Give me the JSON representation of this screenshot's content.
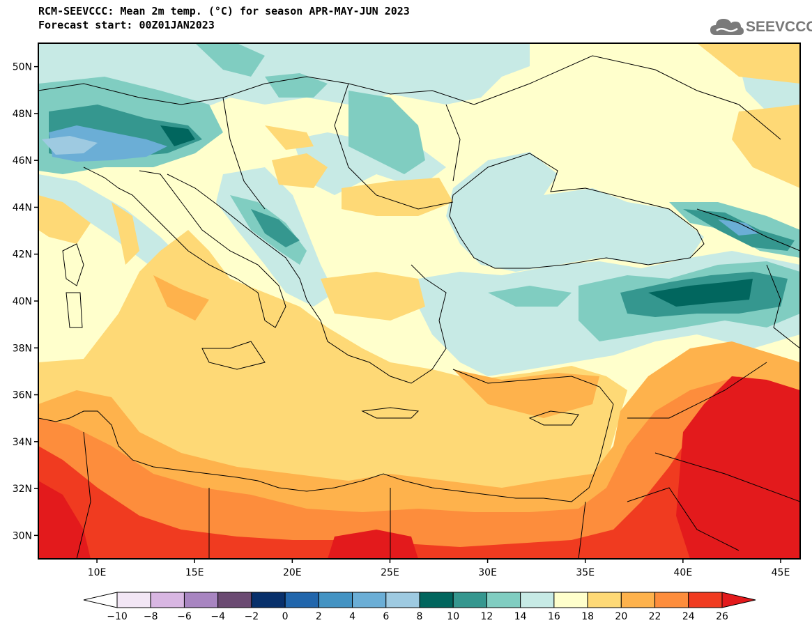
{
  "title": {
    "line1": "RCM-SEEVCCC: Mean 2m temp. (°C) for season APR-MAY-JUN 2023",
    "line2": "Forecast start: 00Z01JAN2023"
  },
  "logo": {
    "text": "SEEVCCC",
    "icon": "cloud-icon"
  },
  "map": {
    "projection": "lat-lon",
    "lon_range": [
      7,
      46
    ],
    "lat_range": [
      29,
      51
    ],
    "lat_ticks": [
      "50N",
      "48N",
      "46N",
      "44N",
      "42N",
      "40N",
      "38N",
      "36N",
      "34N",
      "32N",
      "30N"
    ],
    "lon_ticks": [
      "10E",
      "15E",
      "20E",
      "25E",
      "30E",
      "35E",
      "40E",
      "45E"
    ]
  },
  "colorbar": {
    "labels": [
      "-10",
      "-8",
      "-6",
      "-4",
      "-2",
      "0",
      "2",
      "4",
      "6",
      "8",
      "10",
      "12",
      "14",
      "16",
      "18",
      "20",
      "22",
      "24",
      "26"
    ],
    "colors": [
      "#f2e6f5",
      "#d8b6e2",
      "#a885c1",
      "#6b4a72",
      "#08306b",
      "#2166ac",
      "#4393c3",
      "#6baed6",
      "#9ecae1",
      "#01665e",
      "#35978f",
      "#80cdc1",
      "#c7eae5",
      "#ffffcc",
      "#fed976",
      "#feb24c",
      "#fd8d3c",
      "#f03b20"
    ],
    "under_color": "#ffffff",
    "over_color": "#e31a1c"
  },
  "palette": {
    "pale_yellow": "#ffffcc",
    "light_cyan": "#c7eae5",
    "teal": "#80cdc1",
    "dark_teal": "#35978f",
    "deep_teal": "#01665e",
    "blue": "#6baed6",
    "yellow": "#fed976",
    "orange_light": "#feb24c",
    "orange": "#fd8d3c",
    "red": "#f03b20",
    "dark_red": "#e31a1c"
  }
}
